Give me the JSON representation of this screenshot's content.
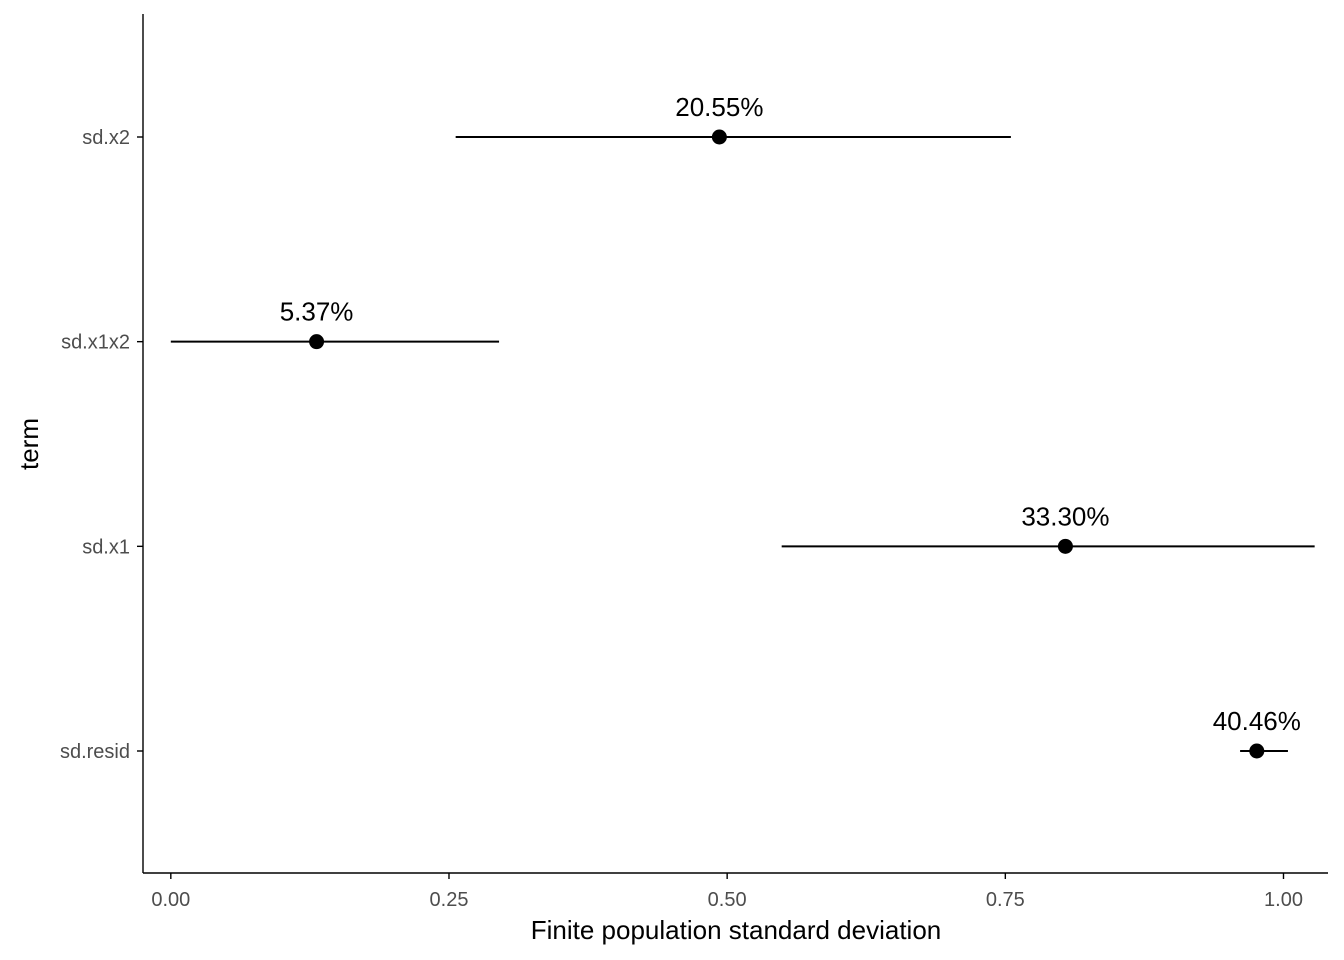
{
  "chart_data": {
    "type": "scatter",
    "subtype": "point-range",
    "xlabel": "Finite population standard deviation",
    "ylabel": "term",
    "xlim": [
      -0.025,
      1.04
    ],
    "x_ticks": [
      0.0,
      0.25,
      0.5,
      0.75,
      1.0
    ],
    "x_tick_labels": [
      "0.00",
      "0.25",
      "0.50",
      "0.75",
      "1.00"
    ],
    "categories": [
      "sd.x2",
      "sd.x1x2",
      "sd.x1",
      "sd.resid"
    ],
    "points": [
      {
        "term": "sd.x2",
        "estimate": 0.493,
        "lower": 0.256,
        "upper": 0.755,
        "label": "20.55%"
      },
      {
        "term": "sd.x1x2",
        "estimate": 0.131,
        "lower": 0.0,
        "upper": 0.295,
        "label": "5.37%"
      },
      {
        "term": "sd.x1",
        "estimate": 0.804,
        "lower": 0.549,
        "upper": 1.028,
        "label": "33.30%"
      },
      {
        "term": "sd.resid",
        "estimate": 0.976,
        "lower": 0.961,
        "upper": 1.004,
        "label": "40.46%"
      }
    ],
    "grid": false,
    "colors": {
      "point": "#000000",
      "line": "#000000",
      "axis": "#000000",
      "tick_text": "#4d4d4d"
    }
  }
}
